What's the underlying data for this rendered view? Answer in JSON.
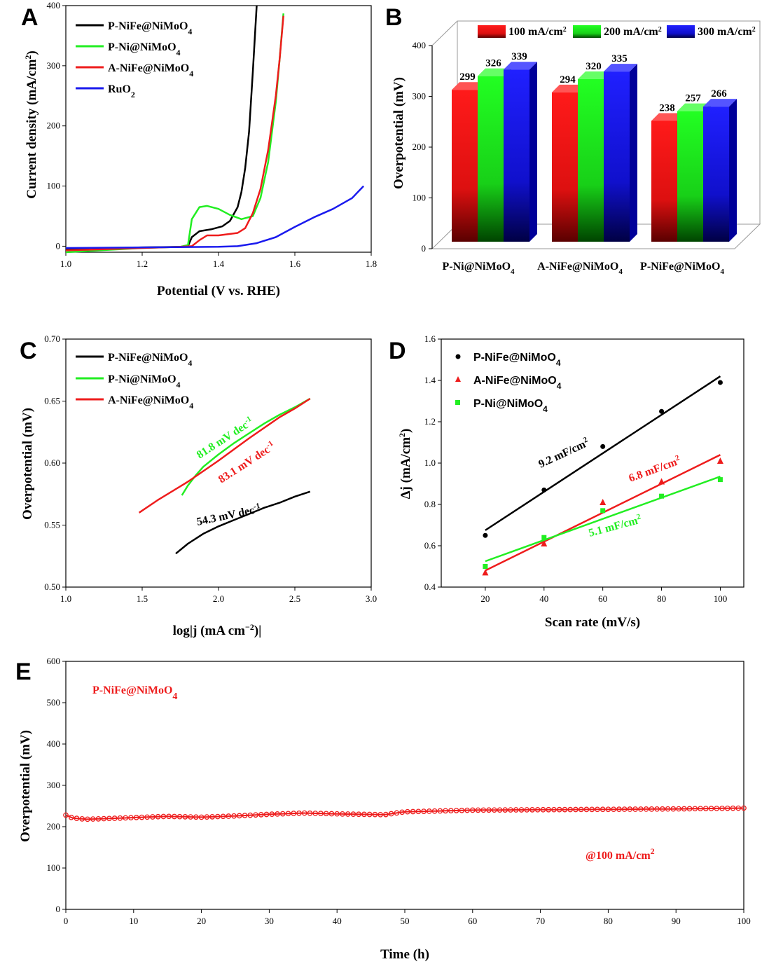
{
  "colors": {
    "black": "#000000",
    "green": "#22ee22",
    "red": "#ee1c1c",
    "blue": "#1a1aee"
  },
  "chart_data": [
    {
      "panel": "A",
      "type": "line",
      "xlabel": "Potential (V vs. RHE)",
      "ylabel": "Current density (mA/cm2)",
      "xlim": [
        1.0,
        1.8
      ],
      "ylim": [
        -10,
        400
      ],
      "xticks": [
        "1.0",
        "1.2",
        "1.4",
        "1.6",
        "1.8"
      ],
      "yticks": [
        "0",
        "100",
        "200",
        "300",
        "400"
      ],
      "legend_position": "top-left",
      "series": [
        {
          "name": "P-NiFe@NiMoO4",
          "color": "#000000",
          "x": [
            1.0,
            1.2,
            1.3,
            1.32,
            1.33,
            1.35,
            1.38,
            1.41,
            1.43,
            1.45,
            1.46,
            1.47,
            1.48,
            1.49,
            1.5
          ],
          "y": [
            -5,
            -2,
            -1,
            0,
            15,
            25,
            28,
            33,
            42,
            65,
            90,
            130,
            190,
            290,
            400
          ]
        },
        {
          "name": "P-Ni@NiMoO4",
          "color": "#22ee22",
          "x": [
            1.0,
            1.2,
            1.3,
            1.32,
            1.33,
            1.35,
            1.37,
            1.4,
            1.43,
            1.46,
            1.49,
            1.51,
            1.53,
            1.55,
            1.56,
            1.57
          ],
          "y": [
            -10,
            -3,
            -1,
            2,
            45,
            65,
            67,
            62,
            52,
            45,
            50,
            80,
            140,
            240,
            310,
            387
          ]
        },
        {
          "name": "A-NiFe@NiMoO4",
          "color": "#ee1c1c",
          "x": [
            1.0,
            1.2,
            1.3,
            1.33,
            1.35,
            1.37,
            1.4,
            1.45,
            1.47,
            1.49,
            1.51,
            1.53,
            1.55,
            1.56,
            1.57
          ],
          "y": [
            -7,
            -3,
            -1,
            0,
            10,
            18,
            18,
            22,
            30,
            55,
            95,
            160,
            250,
            310,
            383
          ]
        },
        {
          "name": "RuO2",
          "color": "#1a1aee",
          "x": [
            1.0,
            1.2,
            1.4,
            1.45,
            1.5,
            1.55,
            1.6,
            1.65,
            1.7,
            1.75,
            1.78
          ],
          "y": [
            -3,
            -2,
            -1,
            0,
            5,
            15,
            32,
            48,
            62,
            80,
            100
          ]
        }
      ]
    },
    {
      "panel": "B",
      "type": "bar",
      "ylabel": "Overpotential (mV)",
      "ylim": [
        0,
        400
      ],
      "yticks": [
        "0",
        "100",
        "200",
        "300",
        "400"
      ],
      "categories": [
        "P-Ni@NiMoO4",
        "A-NiFe@NiMoO4",
        "P-NiFe@NiMoO4"
      ],
      "legend_position": "top",
      "series": [
        {
          "name": "100 mA/cm2",
          "color": "#ee1c1c",
          "values": [
            299,
            294,
            238
          ],
          "labels": [
            "299",
            "294",
            "238"
          ]
        },
        {
          "name": "200 mA/cm2",
          "color": "#22ee22",
          "values": [
            326,
            320,
            257
          ],
          "labels": [
            "326",
            "320",
            "257"
          ]
        },
        {
          "name": "300 mA/cm2",
          "color": "#1a1aee",
          "values": [
            339,
            335,
            266
          ],
          "labels": [
            "339",
            "335",
            "266"
          ]
        }
      ]
    },
    {
      "panel": "C",
      "type": "line",
      "xlabel": "log|j (mA cm−2)|",
      "ylabel": "Overpotential (mV)",
      "xlim": [
        1.0,
        3.0
      ],
      "ylim": [
        0.5,
        0.7
      ],
      "xticks": [
        "1.0",
        "1.5",
        "2.0",
        "2.5",
        "3.0"
      ],
      "yticks": [
        "0.50",
        "0.55",
        "0.60",
        "0.65",
        "0.70"
      ],
      "legend_position": "top-left",
      "series": [
        {
          "name": "P-NiFe@NiMoO4",
          "color": "#000000",
          "x": [
            1.72,
            1.8,
            1.9,
            2.0,
            2.1,
            2.2,
            2.3,
            2.4,
            2.5,
            2.6
          ],
          "y": [
            0.527,
            0.535,
            0.543,
            0.549,
            0.554,
            0.559,
            0.564,
            0.568,
            0.573,
            0.577
          ],
          "annotation": "54.3 mV dec-1"
        },
        {
          "name": "P-Ni@NiMoO4",
          "color": "#22ee22",
          "x": [
            1.76,
            1.8,
            1.85,
            1.9,
            2.0,
            2.1,
            2.2,
            2.3,
            2.4,
            2.5,
            2.6
          ],
          "y": [
            0.574,
            0.582,
            0.59,
            0.597,
            0.607,
            0.616,
            0.624,
            0.632,
            0.639,
            0.645,
            0.652
          ],
          "annotation": "81.8 mV dec-1"
        },
        {
          "name": "A-NiFe@NiMoO4",
          "color": "#ee1c1c",
          "x": [
            1.48,
            1.6,
            1.8,
            2.0,
            2.2,
            2.4,
            2.5,
            2.6
          ],
          "y": [
            0.56,
            0.57,
            0.585,
            0.602,
            0.62,
            0.637,
            0.644,
            0.652
          ],
          "annotation": "83.1 mV dec-1"
        }
      ]
    },
    {
      "panel": "D",
      "type": "scatter",
      "xlabel": "Scan rate (mV/s)",
      "ylabel": "Δj (mA/cm2)",
      "xlim": [
        5,
        108
      ],
      "ylim": [
        0.4,
        1.6
      ],
      "xticks": [
        "20",
        "40",
        "60",
        "80",
        "100"
      ],
      "yticks": [
        "0.4",
        "0.6",
        "0.8",
        "1.0",
        "1.2",
        "1.4",
        "1.6"
      ],
      "legend_position": "top-left",
      "series": [
        {
          "name": "P-NiFe@NiMoO4",
          "color": "#000000",
          "marker": "circle",
          "x": [
            20,
            40,
            60,
            80,
            100
          ],
          "y": [
            0.65,
            0.87,
            1.08,
            1.25,
            1.39
          ],
          "fit": [
            0.675,
            1.42
          ],
          "annotation": "9.2 mF/cm2"
        },
        {
          "name": "A-NiFe@NiMoO4",
          "color": "#ee1c1c",
          "marker": "triangle",
          "x": [
            20,
            40,
            60,
            80,
            100
          ],
          "y": [
            0.47,
            0.61,
            0.81,
            0.91,
            1.01
          ],
          "fit": [
            0.48,
            1.04
          ],
          "annotation": "6.8 mF/cm2"
        },
        {
          "name": "P-Ni@NiMoO4",
          "color": "#22ee22",
          "marker": "square",
          "x": [
            20,
            40,
            60,
            80,
            100
          ],
          "y": [
            0.5,
            0.64,
            0.77,
            0.84,
            0.92
          ],
          "fit": [
            0.525,
            0.935
          ],
          "annotation": "5.1 mF/cm2"
        }
      ]
    },
    {
      "panel": "E",
      "type": "line",
      "xlabel": "Time (h)",
      "ylabel": "Overpotential (mV)",
      "xlim": [
        0,
        100
      ],
      "ylim": [
        0,
        600
      ],
      "xticks": [
        "0",
        "10",
        "20",
        "30",
        "40",
        "50",
        "60",
        "70",
        "80",
        "90",
        "100"
      ],
      "yticks": [
        "0",
        "100",
        "200",
        "300",
        "400",
        "500",
        "600"
      ],
      "series": [
        {
          "name": "P-NiFe@NiMoO4",
          "color": "#ee1c1c",
          "x": [
            0,
            1,
            3,
            5,
            10,
            15,
            20,
            25,
            30,
            35,
            40,
            47,
            50,
            55,
            60,
            70,
            80,
            90,
            100
          ],
          "y": [
            228,
            221,
            218,
            219,
            222,
            225,
            223,
            226,
            230,
            233,
            231,
            229,
            236,
            238,
            240,
            241,
            242,
            243,
            245
          ]
        }
      ],
      "annotation": "@100 mA/cm2"
    }
  ]
}
